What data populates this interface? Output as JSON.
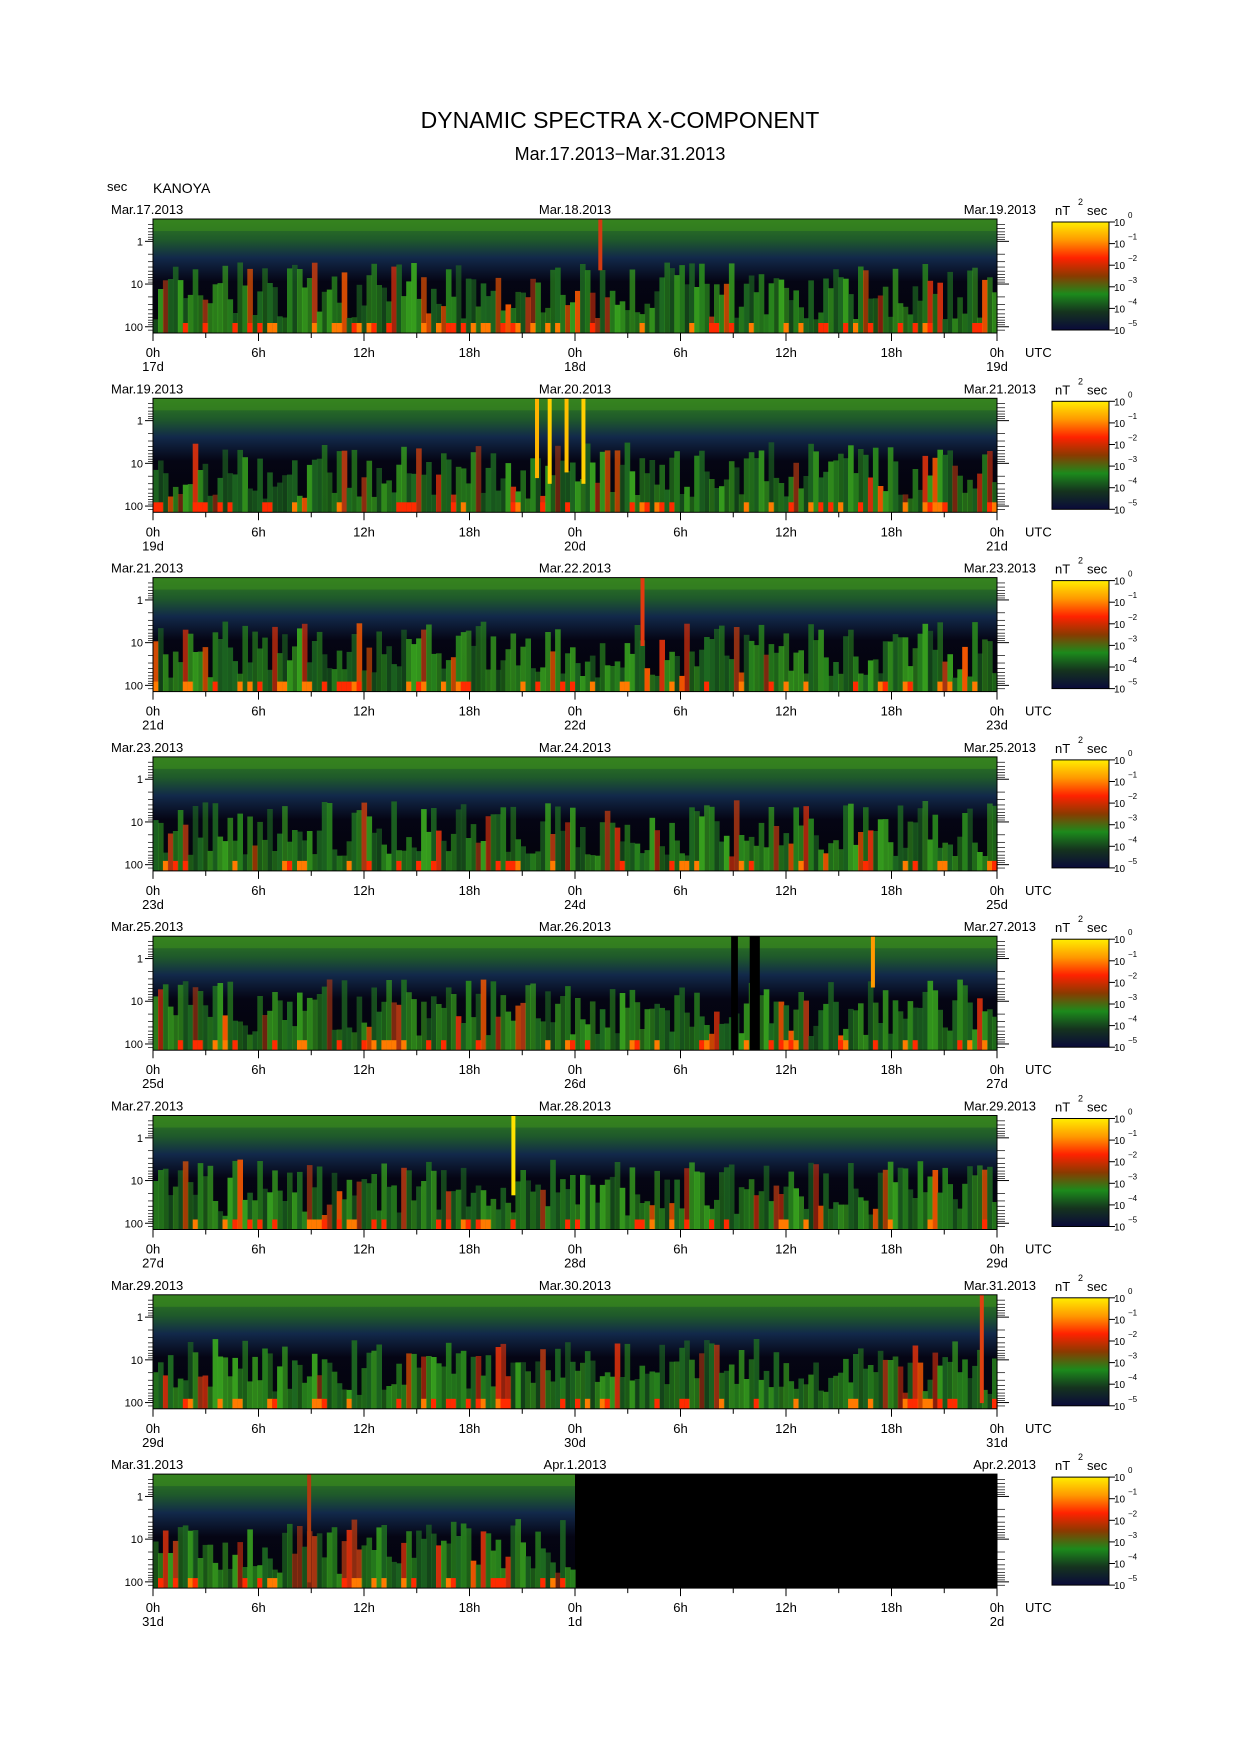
{
  "page": {
    "title": "DYNAMIC SPECTRA X-COMPONENT",
    "subtitle": "Mar.17.2013−Mar.31.2013",
    "y_unit": "sec",
    "station": "KANOYA"
  },
  "colorbar": {
    "unit_main": "nT",
    "unit_exp": "2",
    "unit_suffix": "sec",
    "tick_base": "10",
    "tick_exps": [
      "0",
      "−1",
      "−2",
      "−3",
      "−4",
      "−5"
    ],
    "gradient": [
      "#ffee00",
      "#ff9900",
      "#ff2200",
      "#8a3a00",
      "#1c8a1c",
      "#15331e",
      "#0a0a3a"
    ]
  },
  "chart_data": {
    "type": "heatmap",
    "title": "DYNAMIC SPECTRA X-COMPONENT",
    "subtitle": "Mar.17.2013−Mar.31.2013",
    "station": "KANOYA",
    "ylabel": "sec",
    "y_scale": "log",
    "y_ticks": [
      "1",
      "10",
      "100"
    ],
    "x_ticks": [
      "0h",
      "6h",
      "12h",
      "18h",
      "0h",
      "6h",
      "12h",
      "18h",
      "0h"
    ],
    "x_suffix": "UTC",
    "colorbar_range_exp": [
      0,
      -5
    ],
    "colorbar_unit": "nT^2 sec",
    "panels": [
      {
        "date_left": "Mar.17.2013",
        "date_mid": "Mar.18.2013",
        "date_right": "Mar.19.2013",
        "day_labels": [
          "17d",
          "18d",
          "19d"
        ],
        "data_extent": 1.0,
        "spikes": [
          {
            "t": 0.53,
            "h": 0.45,
            "c": "#d33a12"
          }
        ]
      },
      {
        "date_left": "Mar.19.2013",
        "date_mid": "Mar.20.2013",
        "date_right": "Mar.21.2013",
        "day_labels": [
          "19d",
          "20d",
          "21d"
        ],
        "data_extent": 1.0,
        "spikes": [
          {
            "t": 0.455,
            "h": 0.7,
            "c": "#ffb400"
          },
          {
            "t": 0.47,
            "h": 0.75,
            "c": "#ffd000"
          },
          {
            "t": 0.49,
            "h": 0.65,
            "c": "#ffc000"
          },
          {
            "t": 0.51,
            "h": 0.75,
            "c": "#ffd000"
          }
        ]
      },
      {
        "date_left": "Mar.21.2013",
        "date_mid": "Mar.22.2013",
        "date_right": "Mar.23.2013",
        "day_labels": [
          "21d",
          "22d",
          "23d"
        ],
        "data_extent": 1.0,
        "spikes": [
          {
            "t": 0.58,
            "h": 0.6,
            "c": "#e23a10"
          }
        ]
      },
      {
        "date_left": "Mar.23.2013",
        "date_mid": "Mar.24.2013",
        "date_right": "Mar.25.2013",
        "day_labels": [
          "23d",
          "24d",
          "25d"
        ],
        "data_extent": 1.0,
        "spikes": []
      },
      {
        "date_left": "Mar.25.2013",
        "date_mid": "Mar.26.2013",
        "date_right": "Mar.27.2013",
        "day_labels": [
          "25d",
          "26d",
          "27d"
        ],
        "data_extent": 1.0,
        "spikes": [
          {
            "t": 0.853,
            "h": 0.45,
            "c": "#ff9a00"
          }
        ],
        "gaps": [
          {
            "t": 0.685,
            "w": 0.008
          },
          {
            "t": 0.707,
            "w": 0.012
          }
        ]
      },
      {
        "date_left": "Mar.27.2013",
        "date_mid": "Mar.28.2013",
        "date_right": "Mar.29.2013",
        "day_labels": [
          "27d",
          "28d",
          "29d"
        ],
        "data_extent": 1.0,
        "spikes": [
          {
            "t": 0.427,
            "h": 0.7,
            "c": "#ffe300"
          }
        ]
      },
      {
        "date_left": "Mar.29.2013",
        "date_mid": "Mar.30.2013",
        "date_right": "Mar.31.2013",
        "day_labels": [
          "29d",
          "30d",
          "31d"
        ],
        "data_extent": 1.0,
        "spikes": [
          {
            "t": 0.982,
            "h": 0.95,
            "c": "#e04010"
          }
        ]
      },
      {
        "date_left": "Mar.31.2013",
        "date_mid": "Apr.1.2013",
        "date_right": "Apr.2.2013",
        "day_labels": [
          "31d",
          "1d",
          "2d"
        ],
        "data_extent": 0.5,
        "spikes": [
          {
            "t": 0.185,
            "h": 0.95,
            "c": "#b03a10"
          }
        ]
      }
    ]
  }
}
